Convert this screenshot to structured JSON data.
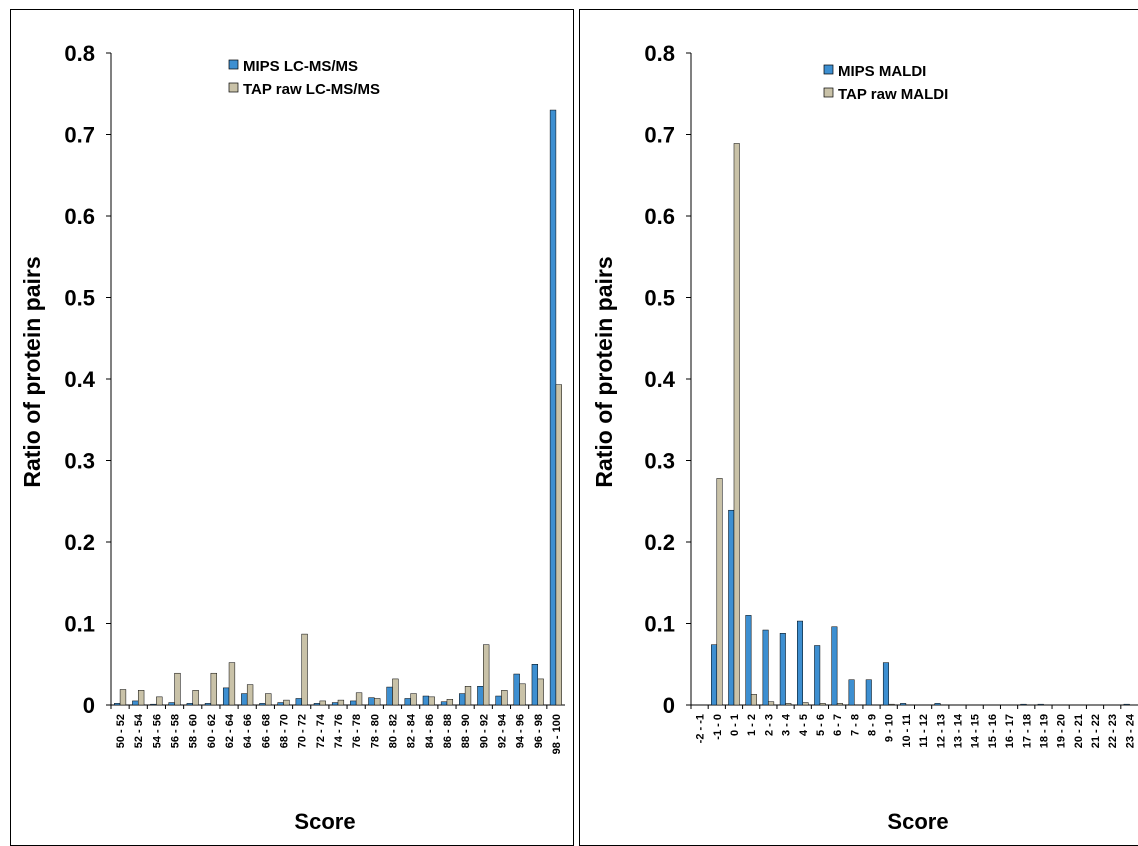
{
  "chart_data": [
    {
      "type": "bar",
      "xlabel": "Score",
      "ylabel": "Ratio of protein pairs",
      "ylim": [
        0,
        0.8
      ],
      "yticks": [
        "0",
        "0.1",
        "0.2",
        "0.3",
        "0.4",
        "0.5",
        "0.6",
        "0.7",
        "0.8"
      ],
      "legend_position": "top-center",
      "categories": [
        "50 - 52",
        "52 - 54",
        "54 - 56",
        "56 - 58",
        "58 - 60",
        "60 - 62",
        "62 - 64",
        "64 - 66",
        "66 - 68",
        "68 - 70",
        "70 - 72",
        "72 - 74",
        "74 - 76",
        "76 - 78",
        "78 - 80",
        "80 - 82",
        "82 - 84",
        "84 - 86",
        "86 - 88",
        "88 - 90",
        "90 - 92",
        "92 - 94",
        "94 - 96",
        "96 - 98",
        "98 - 100"
      ],
      "series": [
        {
          "name": "MIPS LC-MS/MS",
          "color": "#3d8fd1",
          "values": [
            0.002,
            0.005,
            0.001,
            0.003,
            0.002,
            0.002,
            0.021,
            0.014,
            0.002,
            0.003,
            0.008,
            0.002,
            0.003,
            0.005,
            0.009,
            0.022,
            0.008,
            0.011,
            0.004,
            0.014,
            0.023,
            0.011,
            0.038,
            0.05,
            0.73
          ]
        },
        {
          "name": "TAP raw LC-MS/MS",
          "color": "#c9c2a8",
          "values": [
            0.019,
            0.018,
            0.01,
            0.039,
            0.018,
            0.039,
            0.052,
            0.025,
            0.014,
            0.006,
            0.087,
            0.005,
            0.006,
            0.015,
            0.008,
            0.032,
            0.014,
            0.01,
            0.007,
            0.023,
            0.074,
            0.018,
            0.026,
            0.032,
            0.393
          ]
        }
      ]
    },
    {
      "type": "bar",
      "xlabel": "Score",
      "ylabel": "Ratio of protein pairs",
      "ylim": [
        0,
        0.8
      ],
      "yticks": [
        "0",
        "0.1",
        "0.2",
        "0.3",
        "0.4",
        "0.5",
        "0.6",
        "0.7",
        "0.8"
      ],
      "legend_position": "top-center",
      "categories": [
        "-2 - -1",
        "-1 - 0",
        "0 - 1",
        "1 - 2",
        "2 - 3",
        "3 - 4",
        "4 - 5",
        "5 - 6",
        "6 - 7",
        "7 - 8",
        "8 - 9",
        "9 - 10",
        "10 - 11",
        "11 - 12",
        "12 - 13",
        "13 - 14",
        "14 - 15",
        "15 - 16",
        "16 - 17",
        "17 - 18",
        "18 - 19",
        "19 - 20",
        "20 - 21",
        "21 - 22",
        "22 - 23",
        "23 - 24"
      ],
      "series": [
        {
          "name": "MIPS MALDI",
          "color": "#3d8fd1",
          "values": [
            0,
            0.074,
            0.239,
            0.11,
            0.092,
            0.088,
            0.103,
            0.073,
            0.096,
            0.031,
            0.031,
            0.052,
            0.002,
            0,
            0.002,
            0,
            0,
            0,
            0,
            0.001,
            0.001,
            0,
            0,
            0,
            0,
            0.001
          ]
        },
        {
          "name": "TAP raw MALDI",
          "color": "#c9c2a8",
          "values": [
            0,
            0.278,
            0.689,
            0.013,
            0.004,
            0.002,
            0.003,
            0.002,
            0.002,
            0,
            0,
            0.001,
            0,
            0,
            0,
            0,
            0,
            0,
            0,
            0,
            0,
            0,
            0,
            0,
            0,
            0
          ]
        }
      ]
    }
  ]
}
